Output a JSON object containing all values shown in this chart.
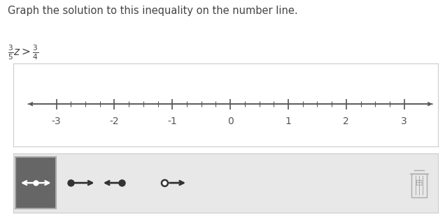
{
  "title_text": "Graph the solution to this inequality on the number line.",
  "number_line_ticks_major": [
    -3,
    -2,
    -1,
    0,
    1,
    2,
    3
  ],
  "bg_color": "#ffffff",
  "number_line_box_bg": "#ffffff",
  "number_line_box_border": "#cccccc",
  "toolbar_bg": "#e8e8e8",
  "toolbar_border": "#cccccc",
  "axis_color": "#555555",
  "tick_color": "#555555",
  "label_color": "#555555",
  "title_fontsize": 10.5,
  "inequality_fontsize": 11,
  "tick_label_fontsize": 10,
  "toolbar_selected_bg": "#666666",
  "toolbar_icon_color": "#333333",
  "toolbar_icon_white": "#ffffff"
}
